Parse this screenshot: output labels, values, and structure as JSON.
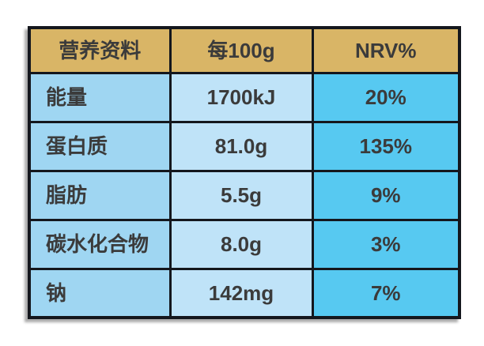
{
  "table": {
    "headers": [
      "营养资料",
      "每100g",
      "NRV%"
    ],
    "rows": [
      {
        "label": "能量",
        "per100g": "1700kJ",
        "nrv": "20%"
      },
      {
        "label": "蛋白质",
        "per100g": "81.0g",
        "nrv": "135%"
      },
      {
        "label": "脂肪",
        "per100g": "5.5g",
        "nrv": "9%"
      },
      {
        "label": "碳水化合物",
        "per100g": "8.0g",
        "nrv": "3%"
      },
      {
        "label": "钠",
        "per100g": "142mg",
        "nrv": "7%"
      }
    ],
    "colors": {
      "page_bg": "#ffffff",
      "header_bg": "#d9b566",
      "col1_bg": "#9fd6f2",
      "col2_bg": "#bfe3f8",
      "col3_bg": "#57c9f1",
      "border": "#14171d",
      "text": "#3b3b3b"
    }
  },
  "chart_data": {
    "type": "table",
    "title": "营养资料",
    "columns": [
      "营养资料",
      "每100g",
      "NRV%"
    ],
    "rows": [
      [
        "能量",
        "1700kJ",
        "20%"
      ],
      [
        "蛋白质",
        "81.0g",
        "135%"
      ],
      [
        "脂肪",
        "5.5g",
        "9%"
      ],
      [
        "碳水化合物",
        "8.0g",
        "3%"
      ],
      [
        "钠",
        "142mg",
        "7%"
      ]
    ]
  }
}
